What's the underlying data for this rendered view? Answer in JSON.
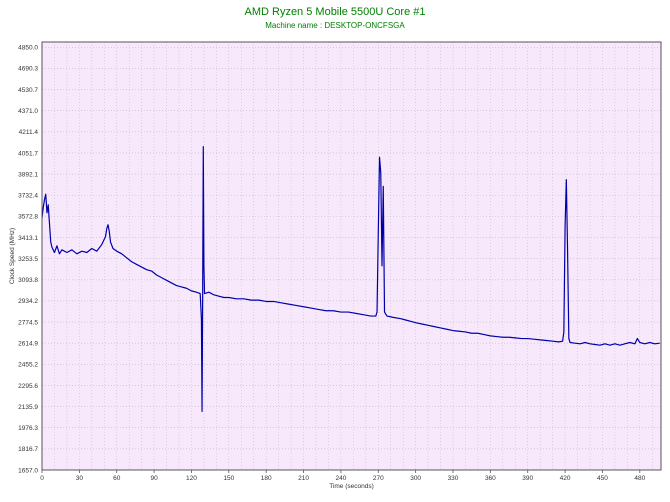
{
  "chart_data": {
    "type": "line",
    "title": "AMD Ryzen 5 Mobile 5500U Core #1",
    "subtitle": "Machine name : DESKTOP-ONCFSGA",
    "xlabel": "Time (seconds)",
    "ylabel": "Clock Speed (MHz)",
    "xlim": [
      0,
      497
    ],
    "ylim": [
      1657.0,
      4890.0
    ],
    "x_ticks": [
      0,
      30,
      60,
      90,
      120,
      150,
      180,
      210,
      240,
      270,
      300,
      330,
      360,
      390,
      420,
      450,
      480
    ],
    "y_ticks": [
      "1657.0",
      "1816.7",
      "1976.3",
      "2135.9",
      "2295.6",
      "2455.2",
      "2614.9",
      "2774.5",
      "2934.2",
      "3093.8",
      "3253.5",
      "3413.1",
      "3572.8",
      "3732.4",
      "3892.1",
      "4051.7",
      "4211.4",
      "4371.0",
      "4530.7",
      "4690.3",
      "4850.0"
    ],
    "grid": true,
    "background_color": "#f8e8fc",
    "grid_color": "#bbbbbb",
    "line_color": "#0000aa",
    "title_color": "#008000",
    "series": [
      {
        "name": "",
        "points": [
          [
            0,
            3560
          ],
          [
            1,
            3640
          ],
          [
            2,
            3700
          ],
          [
            3,
            3740
          ],
          [
            4,
            3600
          ],
          [
            5,
            3660
          ],
          [
            6,
            3520
          ],
          [
            7,
            3380
          ],
          [
            8,
            3340
          ],
          [
            10,
            3300
          ],
          [
            12,
            3350
          ],
          [
            14,
            3290
          ],
          [
            16,
            3320
          ],
          [
            20,
            3300
          ],
          [
            24,
            3320
          ],
          [
            28,
            3290
          ],
          [
            32,
            3310
          ],
          [
            36,
            3300
          ],
          [
            40,
            3330
          ],
          [
            44,
            3310
          ],
          [
            48,
            3360
          ],
          [
            51,
            3420
          ],
          [
            52,
            3480
          ],
          [
            53,
            3510
          ],
          [
            54,
            3460
          ],
          [
            55,
            3380
          ],
          [
            57,
            3330
          ],
          [
            60,
            3310
          ],
          [
            64,
            3290
          ],
          [
            68,
            3260
          ],
          [
            72,
            3230
          ],
          [
            76,
            3210
          ],
          [
            80,
            3190
          ],
          [
            84,
            3170
          ],
          [
            88,
            3160
          ],
          [
            92,
            3130
          ],
          [
            96,
            3110
          ],
          [
            100,
            3090
          ],
          [
            104,
            3070
          ],
          [
            108,
            3050
          ],
          [
            112,
            3040
          ],
          [
            116,
            3030
          ],
          [
            120,
            3010
          ],
          [
            124,
            3000
          ],
          [
            127,
            2990
          ],
          [
            128,
            2800
          ],
          [
            128.5,
            2100
          ],
          [
            129,
            3000
          ],
          [
            129.5,
            4100
          ],
          [
            130,
            3200
          ],
          [
            130.5,
            2990
          ],
          [
            134,
            3000
          ],
          [
            138,
            2980
          ],
          [
            142,
            2970
          ],
          [
            146,
            2960
          ],
          [
            150,
            2960
          ],
          [
            156,
            2950
          ],
          [
            162,
            2950
          ],
          [
            168,
            2940
          ],
          [
            174,
            2940
          ],
          [
            180,
            2930
          ],
          [
            186,
            2930
          ],
          [
            192,
            2920
          ],
          [
            198,
            2910
          ],
          [
            204,
            2900
          ],
          [
            210,
            2890
          ],
          [
            216,
            2880
          ],
          [
            222,
            2870
          ],
          [
            228,
            2860
          ],
          [
            234,
            2860
          ],
          [
            240,
            2850
          ],
          [
            246,
            2850
          ],
          [
            252,
            2840
          ],
          [
            258,
            2830
          ],
          [
            264,
            2820
          ],
          [
            268,
            2820
          ],
          [
            269,
            2850
          ],
          [
            270,
            3450
          ],
          [
            271,
            4020
          ],
          [
            272,
            3900
          ],
          [
            273,
            3200
          ],
          [
            274,
            3800
          ],
          [
            275,
            2850
          ],
          [
            277,
            2820
          ],
          [
            282,
            2810
          ],
          [
            288,
            2800
          ],
          [
            292,
            2790
          ],
          [
            296,
            2780
          ],
          [
            300,
            2770
          ],
          [
            305,
            2760
          ],
          [
            310,
            2750
          ],
          [
            315,
            2740
          ],
          [
            320,
            2730
          ],
          [
            325,
            2720
          ],
          [
            330,
            2710
          ],
          [
            335,
            2705
          ],
          [
            340,
            2700
          ],
          [
            345,
            2690
          ],
          [
            350,
            2690
          ],
          [
            355,
            2680
          ],
          [
            360,
            2670
          ],
          [
            365,
            2665
          ],
          [
            370,
            2660
          ],
          [
            375,
            2660
          ],
          [
            380,
            2655
          ],
          [
            385,
            2650
          ],
          [
            390,
            2650
          ],
          [
            395,
            2645
          ],
          [
            400,
            2640
          ],
          [
            405,
            2635
          ],
          [
            410,
            2630
          ],
          [
            415,
            2625
          ],
          [
            418,
            2630
          ],
          [
            419,
            2700
          ],
          [
            420,
            3500
          ],
          [
            421,
            3850
          ],
          [
            422,
            3300
          ],
          [
            423,
            2650
          ],
          [
            424,
            2620
          ],
          [
            428,
            2615
          ],
          [
            432,
            2610
          ],
          [
            436,
            2620
          ],
          [
            440,
            2610
          ],
          [
            444,
            2605
          ],
          [
            448,
            2600
          ],
          [
            452,
            2610
          ],
          [
            456,
            2600
          ],
          [
            460,
            2610
          ],
          [
            464,
            2600
          ],
          [
            468,
            2610
          ],
          [
            472,
            2620
          ],
          [
            476,
            2610
          ],
          [
            478,
            2650
          ],
          [
            480,
            2620
          ],
          [
            484,
            2610
          ],
          [
            488,
            2620
          ],
          [
            492,
            2610
          ],
          [
            496,
            2615
          ]
        ]
      }
    ]
  }
}
